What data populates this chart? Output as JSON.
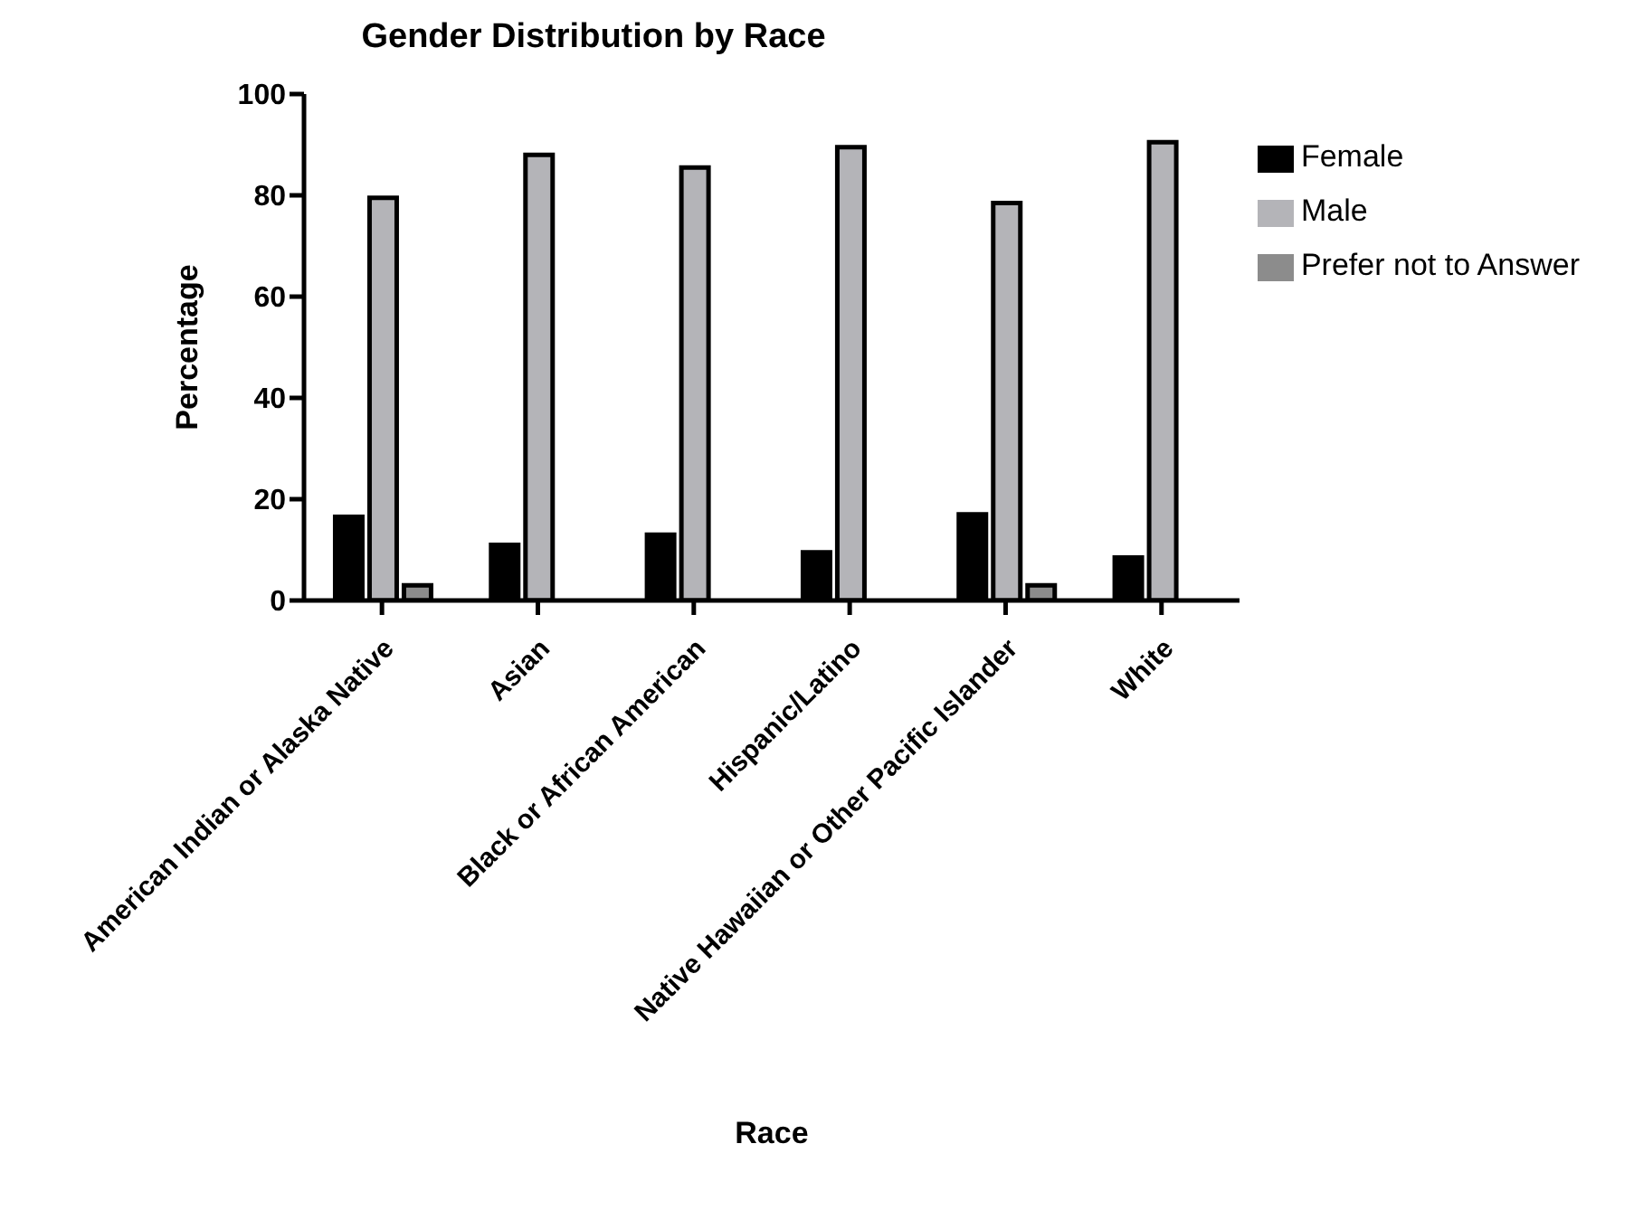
{
  "chart_data": {
    "type": "bar",
    "title": "Gender Distribution by Race",
    "xlabel": "Race",
    "ylabel": "Percentage",
    "categories": [
      "American Indian or Alaska Native",
      "Asian",
      "Black or African American",
      "Hispanic/Latino",
      "Native Hawaiian or Other Pacific Islander",
      "White"
    ],
    "series": [
      {
        "name": "Female",
        "color": "#000000",
        "values": [
          16.5,
          11,
          13,
          9.5,
          17,
          8.5
        ]
      },
      {
        "name": "Male",
        "color": "#b4b4b8",
        "values": [
          79.5,
          88,
          85.5,
          89.5,
          78.5,
          90.5
        ]
      },
      {
        "name": "Prefer not to Answer",
        "color": "#8c8c8c",
        "values": [
          3,
          0,
          0,
          0,
          3,
          0
        ]
      }
    ],
    "ylim": [
      0,
      100
    ],
    "yticks": [
      0,
      20,
      40,
      60,
      80,
      100
    ],
    "grid": false,
    "legend": "top right"
  }
}
